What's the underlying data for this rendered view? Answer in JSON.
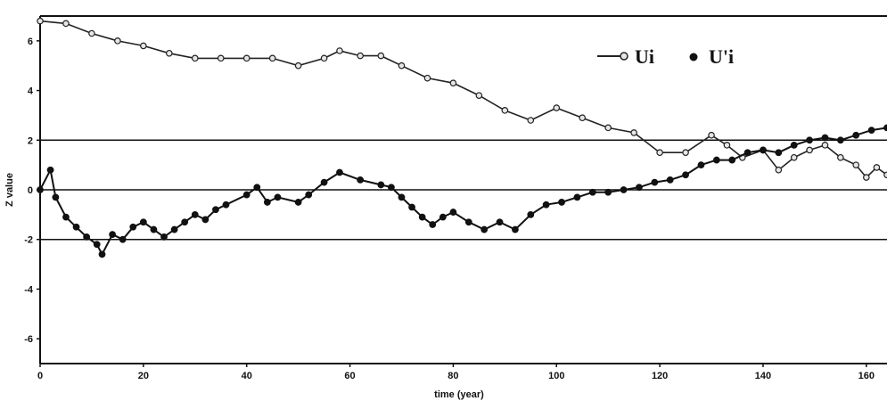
{
  "chart_data": {
    "type": "line",
    "title": "",
    "xlabel": "time (year)",
    "ylabel": "Z value",
    "xlim": [
      0,
      164
    ],
    "ylim": [
      -7,
      7
    ],
    "x_ticks": [
      0,
      20,
      40,
      60,
      80,
      100,
      120,
      140,
      160
    ],
    "y_ticks": [
      -6,
      -4,
      -2,
      0,
      2,
      4,
      6
    ],
    "reference_lines": [
      -2,
      0,
      2
    ],
    "legend_position": "top-right",
    "colors": {
      "ui": "#222222",
      "upi": "#111111",
      "ui_marker_fill": "#e6e6e6",
      "ref_line": "#111111"
    },
    "series": [
      {
        "name": "Ui",
        "marker": "open-circle",
        "points": [
          [
            0,
            6.8
          ],
          [
            5,
            6.7
          ],
          [
            10,
            6.3
          ],
          [
            15,
            6.0
          ],
          [
            20,
            5.8
          ],
          [
            25,
            5.5
          ],
          [
            30,
            5.3
          ],
          [
            35,
            5.3
          ],
          [
            40,
            5.3
          ],
          [
            45,
            5.3
          ],
          [
            50,
            5.0
          ],
          [
            55,
            5.3
          ],
          [
            58,
            5.6
          ],
          [
            62,
            5.4
          ],
          [
            66,
            5.4
          ],
          [
            70,
            5.0
          ],
          [
            75,
            4.5
          ],
          [
            80,
            4.3
          ],
          [
            85,
            3.8
          ],
          [
            90,
            3.2
          ],
          [
            95,
            2.8
          ],
          [
            100,
            3.3
          ],
          [
            105,
            2.9
          ],
          [
            110,
            2.5
          ],
          [
            115,
            2.3
          ],
          [
            120,
            1.5
          ],
          [
            125,
            1.5
          ],
          [
            130,
            2.2
          ],
          [
            133,
            1.8
          ],
          [
            136,
            1.3
          ],
          [
            140,
            1.6
          ],
          [
            143,
            0.8
          ],
          [
            146,
            1.3
          ],
          [
            149,
            1.6
          ],
          [
            152,
            1.8
          ],
          [
            155,
            1.3
          ],
          [
            158,
            1.0
          ],
          [
            160,
            0.5
          ],
          [
            162,
            0.9
          ],
          [
            164,
            0.6
          ]
        ]
      },
      {
        "name": "U'i",
        "marker": "filled-circle",
        "points": [
          [
            0,
            0.0
          ],
          [
            2,
            0.8
          ],
          [
            3,
            -0.3
          ],
          [
            5,
            -1.1
          ],
          [
            7,
            -1.5
          ],
          [
            9,
            -1.9
          ],
          [
            11,
            -2.2
          ],
          [
            12,
            -2.6
          ],
          [
            14,
            -1.8
          ],
          [
            16,
            -2.0
          ],
          [
            18,
            -1.5
          ],
          [
            20,
            -1.3
          ],
          [
            22,
            -1.6
          ],
          [
            24,
            -1.9
          ],
          [
            26,
            -1.6
          ],
          [
            28,
            -1.3
          ],
          [
            30,
            -1.0
          ],
          [
            32,
            -1.2
          ],
          [
            34,
            -0.8
          ],
          [
            36,
            -0.6
          ],
          [
            40,
            -0.2
          ],
          [
            42,
            0.1
          ],
          [
            44,
            -0.5
          ],
          [
            46,
            -0.3
          ],
          [
            50,
            -0.5
          ],
          [
            52,
            -0.2
          ],
          [
            55,
            0.3
          ],
          [
            58,
            0.7
          ],
          [
            62,
            0.4
          ],
          [
            66,
            0.2
          ],
          [
            68,
            0.1
          ],
          [
            70,
            -0.3
          ],
          [
            72,
            -0.7
          ],
          [
            74,
            -1.1
          ],
          [
            76,
            -1.4
          ],
          [
            78,
            -1.1
          ],
          [
            80,
            -0.9
          ],
          [
            83,
            -1.3
          ],
          [
            86,
            -1.6
          ],
          [
            89,
            -1.3
          ],
          [
            92,
            -1.6
          ],
          [
            95,
            -1.0
          ],
          [
            98,
            -0.6
          ],
          [
            101,
            -0.5
          ],
          [
            104,
            -0.3
          ],
          [
            107,
            -0.1
          ],
          [
            110,
            -0.1
          ],
          [
            113,
            0.0
          ],
          [
            116,
            0.1
          ],
          [
            119,
            0.3
          ],
          [
            122,
            0.4
          ],
          [
            125,
            0.6
          ],
          [
            128,
            1.0
          ],
          [
            131,
            1.2
          ],
          [
            134,
            1.2
          ],
          [
            137,
            1.5
          ],
          [
            140,
            1.6
          ],
          [
            143,
            1.5
          ],
          [
            146,
            1.8
          ],
          [
            149,
            2.0
          ],
          [
            152,
            2.1
          ],
          [
            155,
            2.0
          ],
          [
            158,
            2.2
          ],
          [
            161,
            2.4
          ],
          [
            164,
            2.5
          ]
        ]
      }
    ]
  }
}
